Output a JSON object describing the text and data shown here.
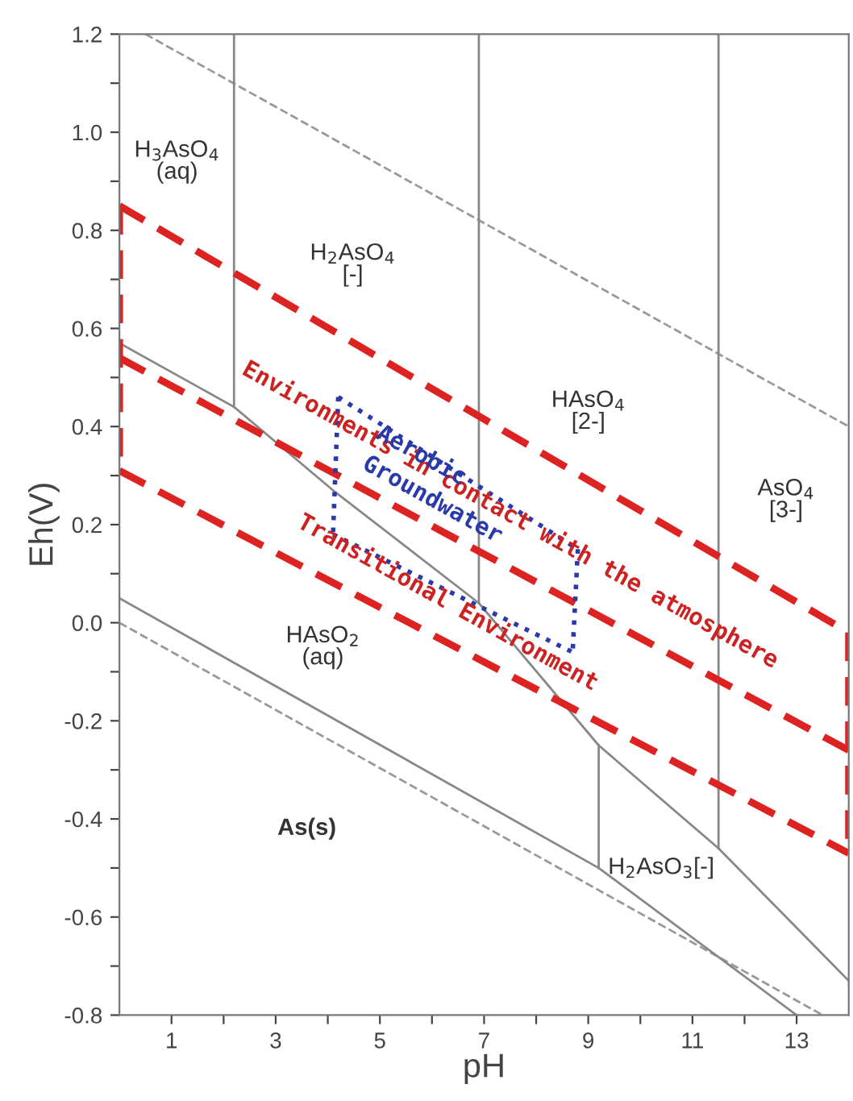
{
  "chart_data": {
    "type": "line",
    "xlabel": "pH",
    "ylabel": "Eh(V)",
    "xlim": [
      0,
      14
    ],
    "ylim": [
      -0.8,
      1.2
    ],
    "xticks": [
      1,
      {
        "value": 2,
        "label": null
      },
      3,
      {
        "value": 4,
        "label": null
      },
      5,
      {
        "value": 6,
        "label": null
      },
      7,
      {
        "value": 8,
        "label": null
      },
      9,
      {
        "value": 10,
        "label": null
      },
      11,
      {
        "value": 12,
        "label": null
      },
      13
    ],
    "yticks": [
      {
        "value": -0.8,
        "label": "-0.8"
      },
      {
        "value": -0.7,
        "label": null
      },
      {
        "value": -0.6,
        "label": "-0.6"
      },
      {
        "value": -0.5,
        "label": null
      },
      {
        "value": -0.4,
        "label": "-0.4"
      },
      {
        "value": -0.3,
        "label": null
      },
      {
        "value": -0.2,
        "label": "-0.2"
      },
      {
        "value": -0.1,
        "label": null
      },
      {
        "value": 0.0,
        "label": "0.0"
      },
      {
        "value": 0.1,
        "label": null
      },
      {
        "value": 0.2,
        "label": "0.2"
      },
      {
        "value": 0.3,
        "label": null
      },
      {
        "value": 0.4,
        "label": "0.4"
      },
      {
        "value": 0.5,
        "label": null
      },
      {
        "value": 0.6,
        "label": "0.6"
      },
      {
        "value": 0.7,
        "label": null
      },
      {
        "value": 0.8,
        "label": "0.8"
      },
      {
        "value": 0.9,
        "label": null
      },
      {
        "value": 1.0,
        "label": "1.0"
      },
      {
        "value": 1.1,
        "label": null
      },
      {
        "value": 1.2,
        "label": "1.2"
      }
    ],
    "grid": false,
    "legend": false,
    "marker": "none",
    "series": [
      {
        "color": "#999999",
        "line_style": "dashed",
        "x": [
          0.5,
          14
        ],
        "values": [
          1.2,
          0.4
        ]
      },
      {
        "color": "#999999",
        "line_style": "dashed",
        "x": [
          0,
          13.5
        ],
        "values": [
          0.0,
          -0.8
        ]
      },
      {
        "color": "#888888",
        "line_style": "solid",
        "x": [
          2.2,
          2.2
        ],
        "values": [
          1.2,
          0.44
        ]
      },
      {
        "color": "#888888",
        "line_style": "solid",
        "x": [
          6.9,
          6.9
        ],
        "values": [
          1.2,
          0.04
        ]
      },
      {
        "color": "#888888",
        "line_style": "solid",
        "x": [
          11.5,
          11.5
        ],
        "values": [
          1.2,
          -0.46
        ]
      },
      {
        "color": "#888888",
        "line_style": "solid",
        "x": [
          9.2,
          9.2
        ],
        "values": [
          -0.25,
          -0.5
        ]
      },
      {
        "color": "#888888",
        "line_style": "solid",
        "x": [
          0,
          2.2,
          4.1,
          6.9,
          9.2,
          11.5,
          14
        ],
        "values": [
          0.57,
          0.44,
          0.27,
          0.04,
          -0.25,
          -0.46,
          -0.73
        ]
      },
      {
        "color": "#888888",
        "line_style": "solid",
        "x": [
          0,
          9.2,
          13
        ],
        "values": [
          0.05,
          -0.5,
          -0.8
        ]
      },
      {
        "color": "#dd2222",
        "line_style": "dashed",
        "x": [
          0,
          14
        ],
        "values": [
          0.85,
          -0.02
        ]
      },
      {
        "color": "#dd2222",
        "line_style": "dashed",
        "x": [
          0,
          14
        ],
        "values": [
          0.54,
          -0.26
        ]
      },
      {
        "color": "#dd2222",
        "line_style": "dashed",
        "x": [
          0,
          14
        ],
        "values": [
          0.31,
          -0.47
        ]
      },
      {
        "color": "#dd2222",
        "line_style": "dashed",
        "x": [
          0,
          0
        ],
        "values": [
          0.85,
          0.31
        ]
      },
      {
        "color": "#dd2222",
        "line_style": "dashed",
        "x": [
          14,
          14
        ],
        "values": [
          -0.02,
          -0.47
        ]
      },
      {
        "color": "#2a3aa8",
        "line_style": "dotted",
        "x": [
          4.2,
          8.8
        ],
        "values": [
          0.46,
          0.15
        ]
      },
      {
        "color": "#2a3aa8",
        "line_style": "dotted",
        "x": [
          4.1,
          8.7
        ],
        "values": [
          0.18,
          -0.06
        ]
      },
      {
        "color": "#2a3aa8",
        "line_style": "dotted",
        "x": [
          4.2,
          4.1
        ],
        "values": [
          0.46,
          0.18
        ]
      },
      {
        "color": "#2a3aa8",
        "line_style": "dotted",
        "x": [
          8.8,
          8.7
        ],
        "values": [
          0.15,
          -0.06
        ]
      }
    ],
    "annotations": [
      "H$_{3}$AsO$_{4}$\n(aq)",
      "H$_{2}$AsO$_{4}$\n[-]",
      "HAsO$_{4}$\n[2-]",
      "AsO$_{4}$\n[3-]",
      "HAsO$_{2}$\n(aq)",
      "As(s)",
      "H$_{2}$AsO$_{3}$[-]",
      "Environments in contact with the atmosphere",
      "Transitional Environment",
      "Aerobic",
      "Groundwater"
    ]
  }
}
